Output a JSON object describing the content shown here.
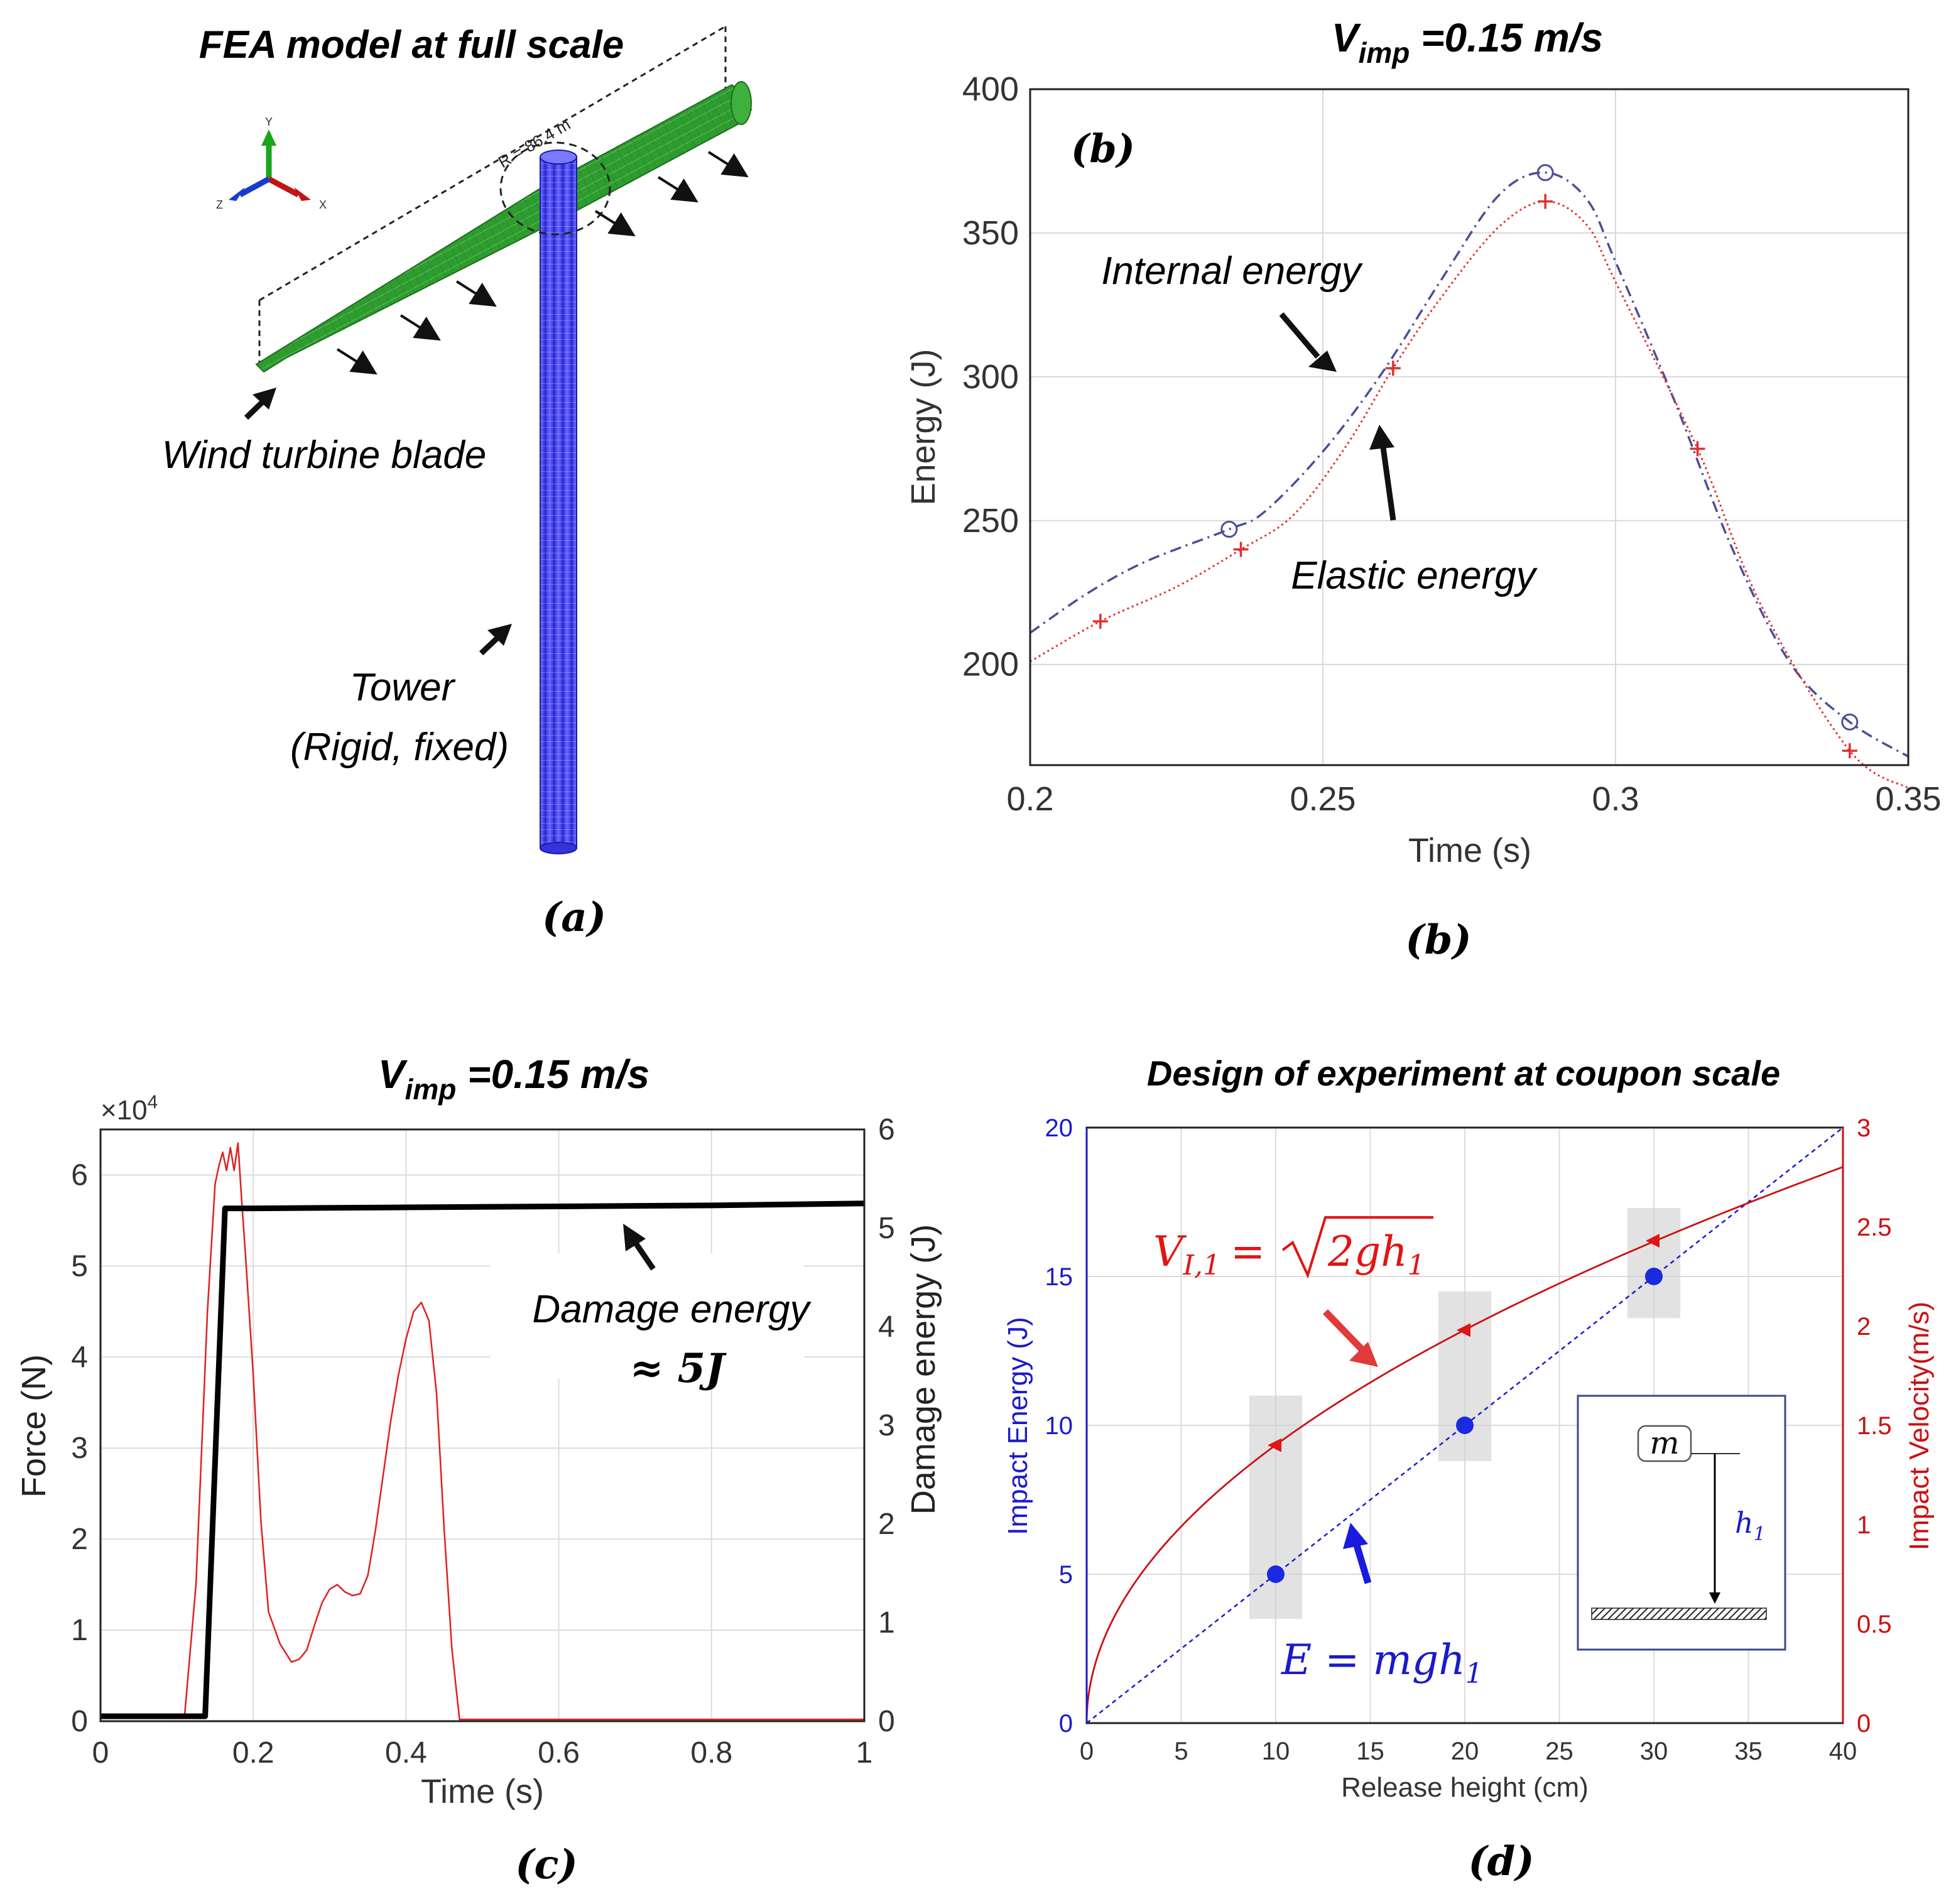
{
  "panel_a": {
    "title": "FEA model at full scale",
    "caption": "(a)",
    "radius_label": "R = 86.4 m",
    "axis_labels": {
      "y": "Y",
      "x": "X",
      "z": "Z"
    },
    "blade_label": "Wind turbine blade",
    "tower_label_1": "Tower",
    "tower_label_2": "(Rigid, fixed)",
    "colors": {
      "blade": "#2e9a2e",
      "tower": "#4a4aff"
    }
  },
  "panel_b": {
    "caption": "(b)"
  },
  "panel_c": {
    "caption": "(c)"
  },
  "panel_d": {
    "caption": "(d)"
  },
  "chart_data": [
    {
      "id": "b",
      "type": "line",
      "title": "V_imp =0.15 m/s",
      "title_main": "V",
      "title_sub": "imp",
      "title_rest": " =0.15 m/s",
      "panel_label": "(b)",
      "xlabel": "Time (s)",
      "ylabel": "Energy (J)",
      "xlim": [
        0.2,
        0.35
      ],
      "ylim": [
        165,
        400
      ],
      "xticks": [
        0.2,
        0.25,
        0.3,
        0.35
      ],
      "xtick_labels": [
        "0.2",
        "0.25",
        "0.3",
        "0.35"
      ],
      "yticks": [
        200,
        250,
        300,
        350,
        400
      ],
      "ytick_labels": [
        "200",
        "250",
        "300",
        "350",
        "400"
      ],
      "grid": true,
      "series": [
        {
          "name": "Internal energy",
          "color": "#4d4d99",
          "style": "dash-dot",
          "marker": "circle",
          "x": [
            0.2,
            0.21,
            0.22,
            0.234,
            0.24,
            0.25,
            0.26,
            0.27,
            0.28,
            0.288,
            0.295,
            0.3,
            0.31,
            0.32,
            0.33,
            0.34,
            0.35
          ],
          "y": [
            211,
            225,
            236,
            247,
            253,
            274,
            301,
            333,
            363,
            371,
            362,
            340,
            292,
            240,
            200,
            180,
            168
          ],
          "marker_x": [
            0.234,
            0.288,
            0.34
          ],
          "marker_y": [
            247,
            371,
            180
          ]
        },
        {
          "name": "Elastic energy",
          "color": "#e03030",
          "style": "dotted",
          "marker": "plus",
          "x": [
            0.2,
            0.212,
            0.225,
            0.236,
            0.245,
            0.254,
            0.262,
            0.27,
            0.28,
            0.288,
            0.295,
            0.3,
            0.314,
            0.325,
            0.34,
            0.35
          ],
          "y": [
            201,
            215,
            227,
            240,
            252,
            276,
            303,
            327,
            352,
            361,
            353,
            333,
            275,
            220,
            170,
            157
          ],
          "marker_x": [
            0.212,
            0.236,
            0.262,
            0.288,
            0.314,
            0.34
          ],
          "marker_y": [
            215,
            240,
            303,
            361,
            275,
            170
          ]
        }
      ],
      "annotations": [
        "Internal energy",
        "Elastic energy"
      ]
    },
    {
      "id": "c",
      "type": "line",
      "title": "V_imp =0.15 m/s",
      "title_main": "V",
      "title_sub": "imp",
      "title_rest": " =0.15 m/s",
      "xlabel": "Time (s)",
      "ylabel_left": "Force (N)",
      "ylabel_right": "Damage energy (J)",
      "y_multiplier": "×10",
      "y_multiplier_exp": "4",
      "xlim": [
        0,
        1
      ],
      "ylim_left": [
        0,
        6.5
      ],
      "ylim_right": [
        0,
        6
      ],
      "xticks": [
        0,
        0.2,
        0.4,
        0.6,
        0.8,
        1
      ],
      "xtick_labels": [
        "0",
        "0.2",
        "0.4",
        "0.6",
        "0.8",
        "1"
      ],
      "yticks_left": [
        0,
        1,
        2,
        3,
        4,
        5,
        6
      ],
      "ytick_labels_left": [
        "0",
        "1",
        "2",
        "3",
        "4",
        "5",
        "6"
      ],
      "yticks_right": [
        0,
        1,
        2,
        3,
        4,
        5,
        6
      ],
      "ytick_labels_right": [
        "0",
        "1",
        "2",
        "3",
        "4",
        "5",
        "6"
      ],
      "grid": true,
      "series": [
        {
          "name": "Force",
          "axis": "left",
          "color": "#e02020",
          "x": [
            0,
            0.11,
            0.125,
            0.14,
            0.15,
            0.155,
            0.16,
            0.165,
            0.17,
            0.175,
            0.18,
            0.185,
            0.19,
            0.2,
            0.21,
            0.22,
            0.235,
            0.25,
            0.26,
            0.27,
            0.28,
            0.29,
            0.3,
            0.31,
            0.32,
            0.33,
            0.34,
            0.35,
            0.36,
            0.37,
            0.38,
            0.39,
            0.4,
            0.41,
            0.42,
            0.43,
            0.44,
            0.45,
            0.46,
            0.47,
            0.5,
            1
          ],
          "y": [
            0.05,
            0.05,
            1.5,
            4.5,
            5.9,
            6.1,
            6.25,
            6.05,
            6.3,
            6.05,
            6.35,
            5.7,
            5.1,
            3.8,
            2.2,
            1.2,
            0.85,
            0.65,
            0.68,
            0.78,
            1.05,
            1.3,
            1.45,
            1.5,
            1.42,
            1.38,
            1.4,
            1.6,
            2.1,
            2.7,
            3.3,
            3.8,
            4.2,
            4.5,
            4.6,
            4.4,
            3.6,
            2.1,
            0.8,
            0.02,
            0.02,
            0.02
          ]
        },
        {
          "name": "Damage energy",
          "axis": "right",
          "color": "#000000",
          "x": [
            0,
            0.137,
            0.163,
            0.2,
            0.4,
            0.6,
            0.8,
            1.0
          ],
          "y": [
            0.05,
            0.05,
            5.2,
            5.2,
            5.21,
            5.22,
            5.23,
            5.25
          ]
        }
      ],
      "annotation_1": "Damage energy",
      "annotation_2": "≈ 5J"
    },
    {
      "id": "d",
      "type": "line",
      "title": "Design of experiment at coupon scale",
      "xlabel": "Release height (cm)",
      "ylabel_left": "Impact Energy (J)",
      "ylabel_right": "Impact Velocity(m/s)",
      "xlim": [
        0,
        40
      ],
      "ylim_left": [
        0,
        20
      ],
      "ylim_right": [
        0,
        3
      ],
      "xticks": [
        0,
        5,
        10,
        15,
        20,
        25,
        30,
        35,
        40
      ],
      "xtick_labels": [
        "0",
        "5",
        "10",
        "15",
        "20",
        "25",
        "30",
        "35",
        "40"
      ],
      "yticks_left": [
        0,
        5,
        10,
        15,
        20
      ],
      "ytick_labels_left": [
        "0",
        "5",
        "10",
        "15",
        "20"
      ],
      "yticks_right": [
        0,
        0.5,
        1,
        1.5,
        2,
        2.5,
        3
      ],
      "ytick_labels_right": [
        "0",
        "0.5",
        "1",
        "1.5",
        "2",
        "2.5",
        "3"
      ],
      "grid": true,
      "series": [
        {
          "name": "E = mgh1",
          "axis": "left",
          "color": "#1a1acc",
          "style": "dashed",
          "x": [
            0,
            40
          ],
          "y": [
            0,
            20
          ],
          "points_x": [
            10,
            20,
            30
          ],
          "points_y": [
            5,
            10,
            15
          ]
        },
        {
          "name": "V_I,1 = sqrt(2gh1)",
          "axis": "right",
          "color": "#cc1010",
          "style": "solid",
          "formula": "sqrt(2*9.81*h/100)",
          "x_range": [
            0,
            40
          ],
          "points_x": [
            10,
            20,
            30
          ],
          "points_y": [
            1.4,
            1.98,
            2.43
          ]
        }
      ],
      "boxes": [
        {
          "x_center": 10,
          "energy_low": 3.5,
          "energy_high": 11
        },
        {
          "x_center": 20,
          "energy_low": 8.8,
          "energy_high": 14.5
        },
        {
          "x_center": 30,
          "energy_low": 13.6,
          "energy_high": 17.3
        }
      ],
      "equation_v_lhs": "V",
      "equation_v_sub": "I,1",
      "equation_v_eq": "=",
      "equation_v_rad": "2gh",
      "equation_v_radsub": "1",
      "equation_e_lhs": "E = mgh",
      "equation_e_sub": "1",
      "inset_mass": "m",
      "inset_height": "h",
      "inset_height_sub": "1",
      "colors": {
        "left_axis": "#1a1acc",
        "right_axis": "#cc1010"
      }
    }
  ]
}
